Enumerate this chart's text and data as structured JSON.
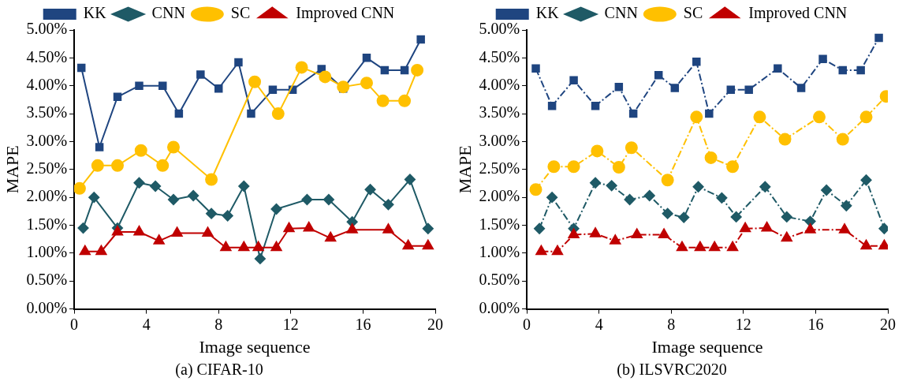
{
  "chart_data": [
    {
      "type": "line",
      "title": "(a) CIFAR-10",
      "xlabel": "Image sequence",
      "ylabel": "MAPE",
      "xlim": [
        0,
        20
      ],
      "xticks": [
        0,
        4,
        8,
        12,
        16,
        20
      ],
      "ylim": [
        0,
        5
      ],
      "yticks": [
        {
          "value": 0,
          "label": "0.00%"
        },
        {
          "value": 0.5,
          "label": "0.50%"
        },
        {
          "value": 1,
          "label": "1.00%"
        },
        {
          "value": 1.5,
          "label": "1.50%"
        },
        {
          "value": 2,
          "label": "2.00%"
        },
        {
          "value": 2.5,
          "label": "2.50%"
        },
        {
          "value": 3,
          "label": "3.00%"
        },
        {
          "value": 3.5,
          "label": "3.50%"
        },
        {
          "value": 4,
          "label": "4.00%"
        },
        {
          "value": 4.5,
          "label": "4.50%"
        },
        {
          "value": 5,
          "label": "5.00%"
        }
      ],
      "legend": "top",
      "grid": false,
      "line_style": "solid",
      "series": [
        {
          "name": "KK",
          "color": "#1f4580",
          "marker": "square",
          "x": [
            0.4,
            1.4,
            2.4,
            3.6,
            4.9,
            5.8,
            7.0,
            8.0,
            9.1,
            9.8,
            11.0,
            12.1,
            13.7,
            14.9,
            16.2,
            17.2,
            18.3,
            19.2
          ],
          "values": [
            4.32,
            2.9,
            3.8,
            4.0,
            4.0,
            3.5,
            4.2,
            3.95,
            4.42,
            3.5,
            3.93,
            3.93,
            4.3,
            3.95,
            4.5,
            4.28,
            4.28,
            4.83
          ]
        },
        {
          "name": "CNN",
          "color": "#1f5a66",
          "marker": "diamond",
          "x": [
            0.5,
            1.1,
            2.4,
            3.6,
            4.5,
            5.5,
            6.6,
            7.6,
            8.5,
            9.4,
            10.3,
            11.2,
            12.9,
            14.1,
            15.4,
            16.4,
            17.4,
            18.6,
            19.6
          ],
          "values": [
            1.45,
            2.0,
            1.45,
            2.26,
            2.2,
            1.96,
            2.03,
            1.71,
            1.67,
            2.2,
            0.9,
            1.79,
            1.96,
            1.96,
            1.56,
            2.14,
            1.87,
            2.32,
            1.44
          ]
        },
        {
          "name": "SC",
          "color": "#ffc000",
          "marker": "circle",
          "x": [
            0.3,
            1.3,
            2.4,
            3.7,
            4.9,
            5.5,
            7.6,
            10.0,
            11.3,
            12.6,
            13.9,
            14.9,
            16.2,
            17.1,
            18.3,
            19.0
          ],
          "values": [
            2.16,
            2.57,
            2.57,
            2.84,
            2.57,
            2.9,
            2.32,
            4.07,
            3.5,
            4.33,
            4.16,
            3.98,
            4.05,
            3.73,
            3.73,
            4.28
          ]
        },
        {
          "name": "Improved CNN",
          "color": "#c00000",
          "marker": "triangle",
          "x": [
            0.6,
            1.5,
            2.4,
            3.6,
            4.7,
            5.7,
            7.4,
            8.4,
            9.4,
            10.2,
            11.2,
            11.9,
            13.0,
            14.2,
            15.4,
            17.4,
            18.5,
            19.6
          ],
          "values": [
            1.03,
            1.03,
            1.38,
            1.38,
            1.22,
            1.36,
            1.36,
            1.1,
            1.1,
            1.1,
            1.1,
            1.44,
            1.45,
            1.27,
            1.42,
            1.42,
            1.13,
            1.13
          ]
        }
      ]
    },
    {
      "type": "line",
      "title": "(b) ILSVRC2020",
      "xlabel": "Image sequence",
      "ylabel": "MAPE",
      "xlim": [
        0,
        20
      ],
      "xticks": [
        0,
        4,
        8,
        12,
        16,
        20
      ],
      "ylim": [
        0,
        5
      ],
      "yticks": [
        {
          "value": 0,
          "label": "0.00%"
        },
        {
          "value": 0.5,
          "label": "0.50%"
        },
        {
          "value": 1,
          "label": "1.00%"
        },
        {
          "value": 1.5,
          "label": "1.50%"
        },
        {
          "value": 2,
          "label": "2.00%"
        },
        {
          "value": 2.5,
          "label": "2.50%"
        },
        {
          "value": 3,
          "label": "3.00%"
        },
        {
          "value": 3.5,
          "label": "3.50%"
        },
        {
          "value": 4,
          "label": "4.00%"
        },
        {
          "value": 4.5,
          "label": "4.50%"
        },
        {
          "value": 5,
          "label": "5.00%"
        }
      ],
      "legend": "top",
      "grid": false,
      "line_style": "dashed",
      "series": [
        {
          "name": "KK",
          "color": "#1f4580",
          "marker": "square",
          "x": [
            0.5,
            1.4,
            2.6,
            3.8,
            5.1,
            5.9,
            7.3,
            8.2,
            9.4,
            10.1,
            11.3,
            12.3,
            13.9,
            15.2,
            16.4,
            17.5,
            18.5,
            19.5
          ],
          "values": [
            4.31,
            3.64,
            4.1,
            3.64,
            3.98,
            3.5,
            4.19,
            3.96,
            4.43,
            3.5,
            3.93,
            3.93,
            4.31,
            3.96,
            4.48,
            4.28,
            4.28,
            4.86
          ]
        },
        {
          "name": "CNN",
          "color": "#1f5a66",
          "marker": "diamond",
          "x": [
            0.7,
            1.4,
            2.6,
            3.8,
            4.7,
            5.7,
            6.8,
            7.8,
            8.7,
            9.5,
            10.8,
            11.6,
            13.2,
            14.4,
            15.7,
            16.6,
            17.7,
            18.8,
            19.8
          ],
          "values": [
            1.44,
            2.0,
            1.44,
            2.26,
            2.21,
            1.96,
            2.03,
            1.71,
            1.64,
            2.19,
            1.99,
            1.65,
            2.19,
            1.65,
            1.57,
            2.13,
            1.85,
            2.31,
            1.44
          ]
        },
        {
          "name": "SC",
          "color": "#ffc000",
          "marker": "circle",
          "x": [
            0.5,
            1.5,
            2.6,
            3.9,
            5.1,
            5.8,
            7.8,
            9.4,
            10.2,
            11.4,
            12.9,
            14.3,
            16.2,
            17.5,
            18.8,
            19.9
          ],
          "values": [
            2.14,
            2.55,
            2.55,
            2.83,
            2.54,
            2.89,
            2.31,
            3.44,
            2.71,
            2.55,
            3.44,
            3.04,
            3.44,
            3.04,
            3.44,
            3.81
          ]
        },
        {
          "name": "Improved CNN",
          "color": "#c00000",
          "marker": "triangle",
          "x": [
            0.8,
            1.7,
            2.6,
            3.8,
            4.9,
            6.1,
            7.6,
            8.6,
            9.6,
            10.4,
            11.4,
            12.1,
            13.3,
            14.4,
            15.7,
            17.6,
            18.8,
            19.8
          ],
          "values": [
            1.03,
            1.03,
            1.33,
            1.35,
            1.22,
            1.33,
            1.33,
            1.1,
            1.1,
            1.1,
            1.1,
            1.44,
            1.45,
            1.27,
            1.42,
            1.42,
            1.13,
            1.13
          ]
        }
      ]
    }
  ]
}
